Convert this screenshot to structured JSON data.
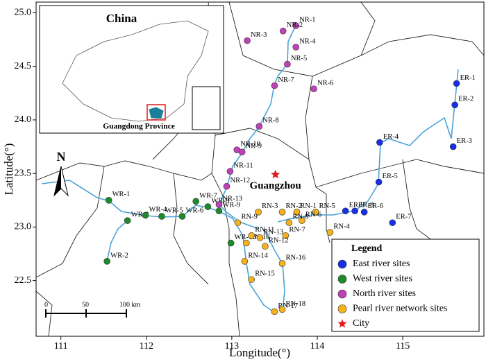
{
  "map": {
    "xlabel": "Longitude(°)",
    "ylabel": "Latitude(°)",
    "xlim": [
      110.71,
      115.95
    ],
    "ylim": [
      21.98,
      25.1
    ],
    "xticks": [
      111,
      112,
      113,
      114,
      115
    ],
    "yticks": [
      {
        "value": 22.5,
        "label": "22.5"
      },
      {
        "value": 23,
        "label": "23.0"
      },
      23.5,
      {
        "value": 24,
        "label": "24.0"
      },
      24.5,
      {
        "value": 25,
        "label": "25.0"
      }
    ],
    "north": "N",
    "inset": {
      "title": "China",
      "label": "Guangdong Province"
    },
    "scale_bar": [
      "0",
      "50",
      "100 km"
    ],
    "legend_title": "Legend",
    "groups": [
      {
        "name": "East river sites",
        "color": "#1a2ee8",
        "sites": [
          {
            "label": "ER-1",
            "lon": 115.63,
            "lat": 24.34
          },
          {
            "label": "ER-2",
            "lon": 115.61,
            "lat": 24.14
          },
          {
            "label": "ER-3",
            "lon": 115.59,
            "lat": 23.75
          },
          {
            "label": "ER-4",
            "lon": 114.73,
            "lat": 23.79
          },
          {
            "label": "ER-5",
            "lon": 114.72,
            "lat": 23.42
          },
          {
            "label": "ER-6",
            "lon": 114.55,
            "lat": 23.14
          },
          {
            "label": "ER-7",
            "lon": 114.88,
            "lat": 23.04
          },
          {
            "label": "ER-8",
            "lon": 114.44,
            "lat": 23.15
          },
          {
            "label": "ER-9",
            "lon": 114.33,
            "lat": 23.15
          }
        ]
      },
      {
        "name": "West river sites",
        "color": "#1f8a2a",
        "sites": [
          {
            "label": "WR-1",
            "lon": 111.56,
            "lat": 23.25
          },
          {
            "label": "WR-2",
            "lon": 111.54,
            "lat": 22.68
          },
          {
            "label": "WR-3",
            "lon": 111.78,
            "lat": 23.06
          },
          {
            "label": "WR-4",
            "lon": 111.99,
            "lat": 23.11
          },
          {
            "label": "WR-5",
            "lon": 112.18,
            "lat": 23.1
          },
          {
            "label": "WR-6",
            "lon": 112.42,
            "lat": 23.1
          },
          {
            "label": "WR-7",
            "lon": 112.58,
            "lat": 23.24
          },
          {
            "label": "WR-8",
            "lon": 112.72,
            "lat": 23.19
          },
          {
            "label": "WR-9",
            "lon": 112.85,
            "lat": 23.15
          },
          {
            "label": "WR-10",
            "lon": 112.99,
            "lat": 22.85
          }
        ]
      },
      {
        "name": "North river sites",
        "color": "#c040b8",
        "sites": [
          {
            "label": "NR-1",
            "lon": 113.75,
            "lat": 24.88
          },
          {
            "label": "NR-2",
            "lon": 113.6,
            "lat": 24.83
          },
          {
            "label": "NR-3",
            "lon": 113.18,
            "lat": 24.74
          },
          {
            "label": "NR-4",
            "lon": 113.75,
            "lat": 24.68
          },
          {
            "label": "NR-5",
            "lon": 113.65,
            "lat": 24.52
          },
          {
            "label": "NR-6",
            "lon": 113.96,
            "lat": 24.29
          },
          {
            "label": "NR-7",
            "lon": 113.5,
            "lat": 24.32
          },
          {
            "label": "NR-8",
            "lon": 113.32,
            "lat": 23.94
          },
          {
            "label": "NR-9",
            "lon": 113.12,
            "lat": 23.7
          },
          {
            "label": "NR-10",
            "lon": 113.06,
            "lat": 23.72
          },
          {
            "label": "NR-11",
            "lon": 112.98,
            "lat": 23.52
          },
          {
            "label": "NR-12",
            "lon": 112.94,
            "lat": 23.38
          },
          {
            "label": "NR-13",
            "lon": 112.85,
            "lat": 23.21
          }
        ]
      },
      {
        "name": "Pearl river network sites",
        "color": "#f5b21c",
        "sites": [
          {
            "label": "RN-1",
            "lon": 113.76,
            "lat": 23.14
          },
          {
            "label": "RN-2",
            "lon": 113.59,
            "lat": 23.14
          },
          {
            "label": "RN-3",
            "lon": 113.31,
            "lat": 23.14
          },
          {
            "label": "RN-4",
            "lon": 114.15,
            "lat": 22.95
          },
          {
            "label": "RN-5",
            "lon": 113.98,
            "lat": 23.14
          },
          {
            "label": "RN-6",
            "lon": 113.82,
            "lat": 23.06
          },
          {
            "label": "RN-7",
            "lon": 113.63,
            "lat": 22.92
          },
          {
            "label": "RN-8",
            "lon": 113.67,
            "lat": 23.04
          },
          {
            "label": "RN-9",
            "lon": 113.07,
            "lat": 23.04
          },
          {
            "label": "RN-10",
            "lon": 113.17,
            "lat": 22.85
          },
          {
            "label": "RN-11",
            "lon": 113.23,
            "lat": 22.92
          },
          {
            "label": "RN-12",
            "lon": 113.39,
            "lat": 22.82
          },
          {
            "label": "RN-13",
            "lon": 113.33,
            "lat": 22.9
          },
          {
            "label": "RN-14",
            "lon": 113.15,
            "lat": 22.68
          },
          {
            "label": "RN-15",
            "lon": 113.23,
            "lat": 22.51
          },
          {
            "label": "RN-16",
            "lon": 113.59,
            "lat": 22.66
          },
          {
            "label": "RN-17",
            "lon": 113.5,
            "lat": 22.21
          },
          {
            "label": "RN-18",
            "lon": 113.59,
            "lat": 22.23
          }
        ]
      }
    ],
    "city": {
      "name": "Guangzhou",
      "legend": "City",
      "color": "#e01818",
      "lon": 113.51,
      "lat": 23.49
    }
  }
}
